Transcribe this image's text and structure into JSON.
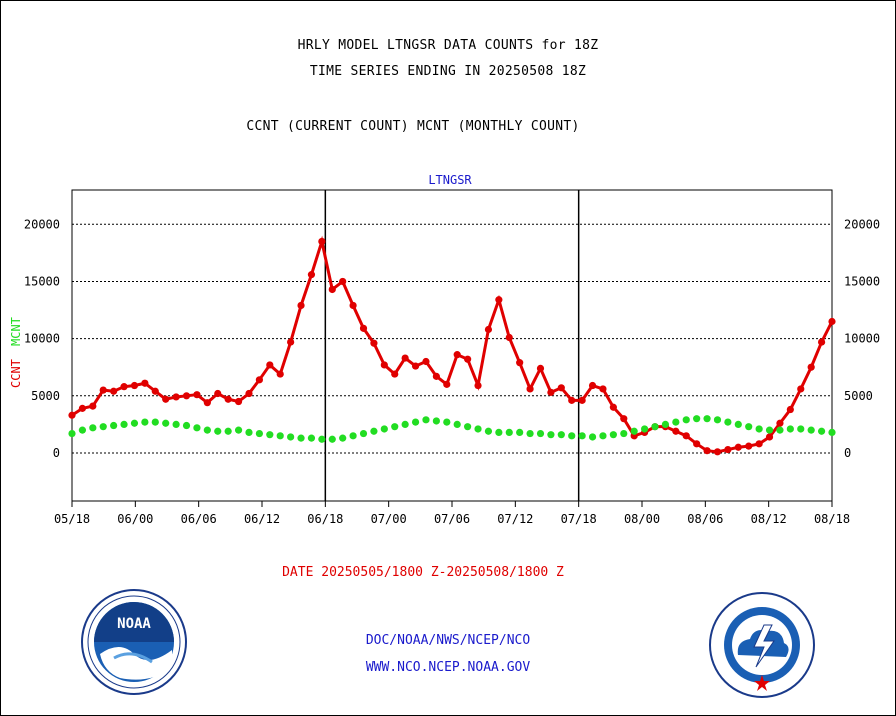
{
  "titles": {
    "line1": "HRLY MODEL LTNGSR DATA COUNTS for 18Z",
    "line2": "TIME SERIES ENDING IN 20250508 18Z",
    "line3": "CCNT (CURRENT COUNT) MCNT (MONTHLY COUNT)"
  },
  "date_range": "DATE 20250505/1800 Z-20250508/1800 Z",
  "footer": {
    "line1": "DOC/NOAA/NWS/NCEP/NCO",
    "line2": "WWW.NCO.NCEP.NOAA.GOV"
  },
  "logos": {
    "noaa": {
      "icon": "noaa-logo",
      "text": "NOAA"
    },
    "nws": {
      "icon": "nws-logo"
    }
  },
  "colors": {
    "ccnt": "#e00000",
    "mcnt": "#22dd22",
    "panel_title": "#1a1acc",
    "footer": "#1a1acc"
  },
  "chart_data": {
    "type": "line",
    "title": "LTNGSR",
    "xlabel": "",
    "ylabel_left": [
      "CCNT",
      "MCNT"
    ],
    "ylabel_right": "",
    "ylim": [
      -4200,
      23000
    ],
    "yticks": [
      0,
      5000,
      10000,
      15000,
      20000
    ],
    "xticks": [
      "05/18",
      "06/00",
      "06/06",
      "06/12",
      "06/18",
      "07/00",
      "07/06",
      "07/12",
      "07/18",
      "08/00",
      "08/06",
      "08/12",
      "08/18"
    ],
    "day_separators_at_hour": [
      24,
      48
    ],
    "grid": true,
    "series": [
      {
        "name": "CCNT",
        "color": "#e00000",
        "values": [
          3300,
          3900,
          4100,
          5500,
          5400,
          5800,
          5900,
          6100,
          5400,
          4700,
          4900,
          5000,
          5100,
          4400,
          5200,
          4700,
          4500,
          5200,
          6400,
          7700,
          6900,
          9700,
          12900,
          15600,
          18500,
          14300,
          15000,
          12900,
          10900,
          9600,
          7700,
          6900,
          8300,
          7600,
          8000,
          6700,
          6000,
          8600,
          8200,
          5900,
          10800,
          13400,
          10100,
          7900,
          5600,
          7400,
          5300,
          5700,
          4600,
          4600,
          5900,
          5600,
          4000,
          3000,
          1500,
          1800,
          2300,
          2300,
          1900,
          1500,
          800,
          200,
          100,
          300,
          500,
          600,
          800,
          1400,
          2600,
          3800,
          5600,
          7500,
          9700,
          11500
        ]
      },
      {
        "name": "MCNT",
        "color": "#22dd22",
        "values": [
          1700,
          2000,
          2200,
          2300,
          2400,
          2500,
          2600,
          2700,
          2700,
          2600,
          2500,
          2400,
          2200,
          2000,
          1900,
          1900,
          2000,
          1800,
          1700,
          1600,
          1500,
          1400,
          1300,
          1300,
          1200,
          1200,
          1300,
          1500,
          1700,
          1900,
          2100,
          2300,
          2500,
          2700,
          2900,
          2800,
          2700,
          2500,
          2300,
          2100,
          1900,
          1800,
          1800,
          1800,
          1700,
          1700,
          1600,
          1600,
          1500,
          1500,
          1400,
          1500,
          1600,
          1700,
          1900,
          2100,
          2300,
          2500,
          2700,
          2900,
          3000,
          3000,
          2900,
          2700,
          2500,
          2300,
          2100,
          2000,
          2000,
          2100,
          2100,
          2000,
          1900,
          1800
        ]
      }
    ]
  }
}
